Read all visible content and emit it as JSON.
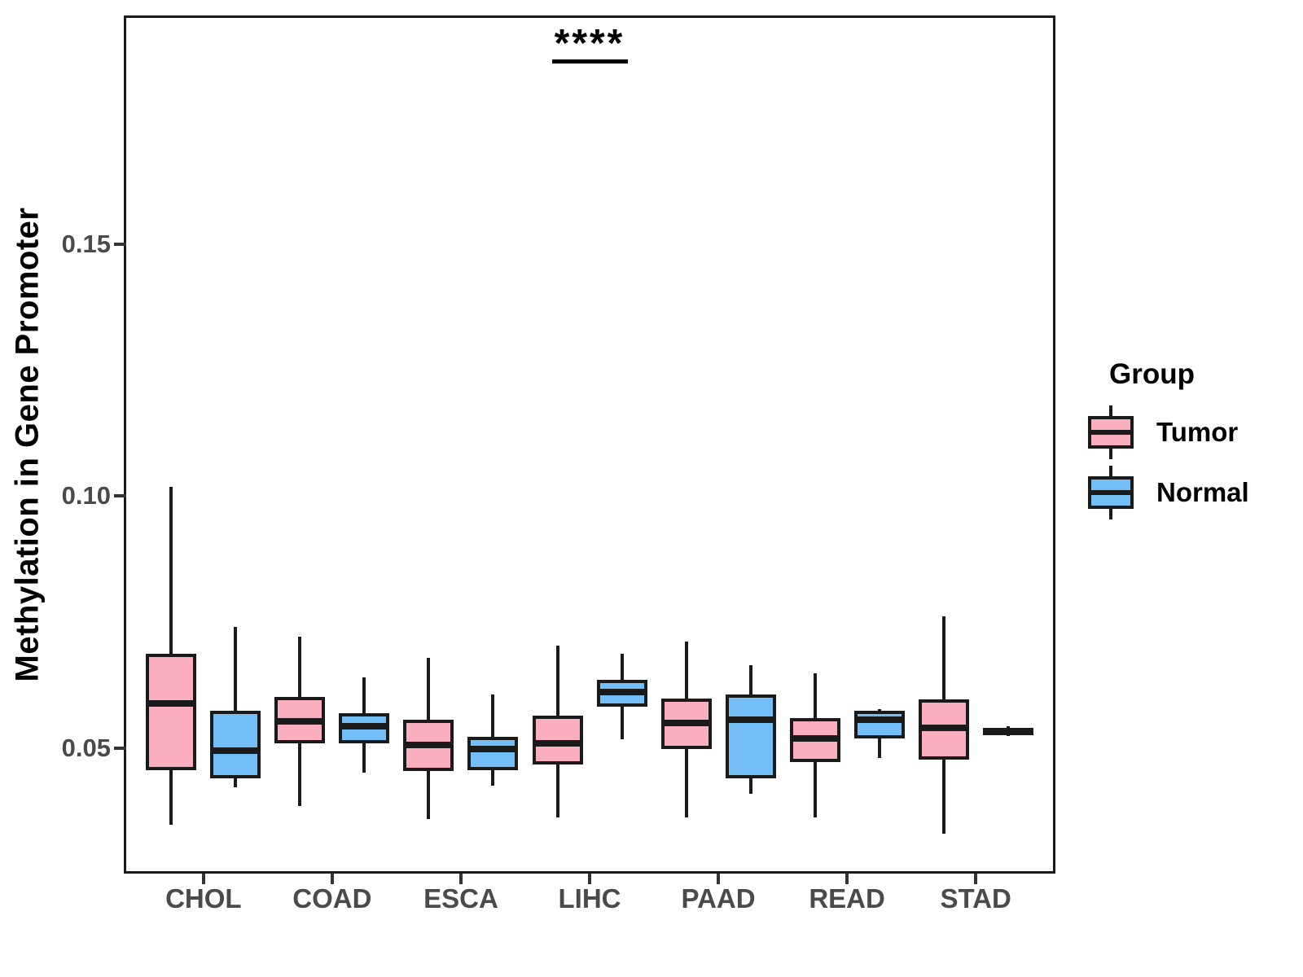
{
  "chart_data": {
    "type": "grouped_boxplot",
    "title": "",
    "xlabel": "",
    "ylabel": "Methylation in Gene Promoter",
    "categories": [
      "CHOL",
      "COAD",
      "ESCA",
      "LIHC",
      "PAAD",
      "READ",
      "STAD"
    ],
    "y_ticks": [
      {
        "value": 0.05,
        "label": "0.05"
      },
      {
        "value": 0.1,
        "label": "0.10"
      },
      {
        "value": 0.15,
        "label": "0.15"
      }
    ],
    "ylim": [
      0.026,
      0.195
    ],
    "grid": false,
    "legend_title": "Group",
    "legend_position": "right",
    "annotation": {
      "label": "****",
      "category": "LIHC"
    },
    "colors": {
      "outline": "#1a1a1a",
      "tumor": "#FBAEBE",
      "normal": "#74BFF7"
    },
    "groups": [
      {
        "name": "Tumor",
        "color": "#FBAEBE",
        "boxes": [
          {
            "category": "CHOL",
            "low": 0.0349,
            "q1": 0.0457,
            "median": 0.0588,
            "q3": 0.0687,
            "high": 0.1018
          },
          {
            "category": "COAD",
            "low": 0.0385,
            "q1": 0.0509,
            "median": 0.0553,
            "q3": 0.0601,
            "high": 0.0721
          },
          {
            "category": "ESCA",
            "low": 0.036,
            "q1": 0.0454,
            "median": 0.0507,
            "q3": 0.0557,
            "high": 0.0679
          },
          {
            "category": "LIHC",
            "low": 0.0363,
            "q1": 0.0468,
            "median": 0.051,
            "q3": 0.0565,
            "high": 0.0703
          },
          {
            "category": "PAAD",
            "low": 0.0363,
            "q1": 0.0498,
            "median": 0.055,
            "q3": 0.0598,
            "high": 0.0711
          },
          {
            "category": "READ",
            "low": 0.0363,
            "q1": 0.0472,
            "median": 0.052,
            "q3": 0.0559,
            "high": 0.0648
          },
          {
            "category": "STAD",
            "low": 0.0331,
            "q1": 0.0477,
            "median": 0.054,
            "q3": 0.0597,
            "high": 0.0761
          }
        ]
      },
      {
        "name": "Normal",
        "color": "#74BFF7",
        "boxes": [
          {
            "category": "CHOL",
            "low": 0.0422,
            "q1": 0.0441,
            "median": 0.0495,
            "q3": 0.0574,
            "high": 0.074
          },
          {
            "category": "COAD",
            "low": 0.0452,
            "q1": 0.0509,
            "median": 0.0543,
            "q3": 0.0569,
            "high": 0.0641
          },
          {
            "category": "ESCA",
            "low": 0.0425,
            "q1": 0.0456,
            "median": 0.0498,
            "q3": 0.0522,
            "high": 0.0606
          },
          {
            "category": "LIHC",
            "low": 0.0517,
            "q1": 0.0582,
            "median": 0.0611,
            "q3": 0.0635,
            "high": 0.0687
          },
          {
            "category": "PAAD",
            "low": 0.0409,
            "q1": 0.044,
            "median": 0.0556,
            "q3": 0.0606,
            "high": 0.0664
          },
          {
            "category": "READ",
            "low": 0.0481,
            "q1": 0.052,
            "median": 0.0556,
            "q3": 0.0574,
            "high": 0.0578
          },
          {
            "category": "STAD",
            "low": 0.0524,
            "q1": 0.0528,
            "median": 0.0534,
            "q3": 0.0539,
            "high": 0.0543
          }
        ]
      }
    ]
  }
}
